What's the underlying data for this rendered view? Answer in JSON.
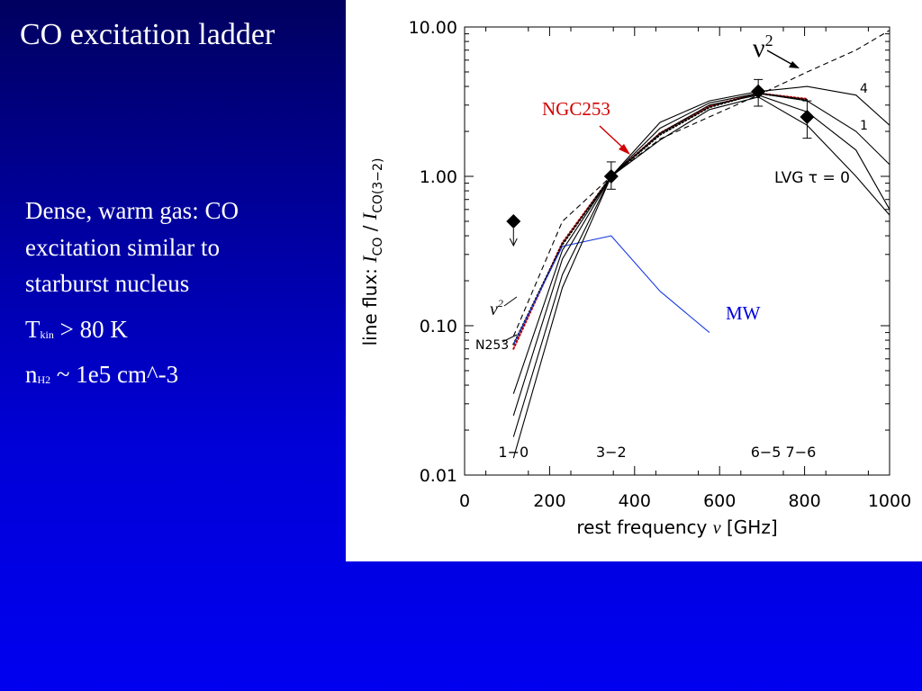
{
  "slide": {
    "title": "CO excitation ladder",
    "bullet_lines": [
      "Dense, warm gas: CO",
      "excitation similar to",
      "starburst nucleus"
    ],
    "tkin": {
      "symbol": "T",
      "sub": "kin",
      "rest": " > 80 K"
    },
    "nh2": {
      "symbol": "n",
      "sub": "H2",
      "rest": " ~ 1e5 cm^-3"
    }
  },
  "chart_data": {
    "type": "line",
    "x_axis": {
      "label_main": "rest frequency ",
      "label_symbol": "ν",
      "label_unit": " [GHz]",
      "range": [
        0,
        1000
      ],
      "ticks": [
        "0",
        "200",
        "400",
        "600",
        "800",
        "1000"
      ]
    },
    "y_axis": {
      "label_prefix": "line flux:  ",
      "label_ratio": "I",
      "label_sub_num": "CO",
      "label_sep": "  /  ",
      "label_sub_den": "CO(3−2)",
      "scale": "log",
      "range": [
        0.01,
        10
      ],
      "ticks": [
        "10.00",
        "1.00",
        "0.10",
        "0.01"
      ]
    },
    "transition_labels": [
      {
        "text": "1−0",
        "x": 115
      },
      {
        "text": "3−2",
        "x": 345
      },
      {
        "text": "6−5 7−6",
        "x": 750
      }
    ],
    "annotations": {
      "nu2_top": {
        "base": "ν",
        "sup": "2"
      },
      "nu2_left": {
        "base": "ν",
        "sup": "2"
      },
      "ngc253": "NGC253",
      "mw": "MW",
      "lvg": "LVG  τ = 0",
      "n253": "N253",
      "curve4": "4",
      "curve1": "1"
    },
    "series": [
      {
        "name": "",
        "style": "dashed",
        "color": "#000000",
        "points": [
          [
            115,
            0.085
          ],
          [
            230,
            0.5
          ],
          [
            345,
            1.0
          ],
          [
            460,
            1.78
          ],
          [
            576,
            2.5
          ],
          [
            691,
            3.5
          ],
          [
            806,
            5.0
          ],
          [
            921,
            7.0
          ],
          [
            1000,
            9.5
          ]
        ]
      },
      {
        "name": "NGC253",
        "style": "dotted",
        "color": "#c00000",
        "points": [
          [
            115,
            0.07
          ],
          [
            230,
            0.36
          ],
          [
            345,
            1.0
          ],
          [
            460,
            1.95
          ],
          [
            576,
            2.95
          ],
          [
            691,
            3.6
          ],
          [
            806,
            3.3
          ]
        ]
      },
      {
        "name": "N253",
        "style": "dotted",
        "color": "#000000",
        "points": [
          [
            115,
            0.075
          ],
          [
            230,
            0.35
          ],
          [
            345,
            1.0
          ],
          [
            460,
            1.9
          ],
          [
            576,
            2.9
          ],
          [
            691,
            3.6
          ],
          [
            806,
            3.25
          ]
        ]
      },
      {
        "name": "MW",
        "style": "solid",
        "color": "#1a3ce6",
        "points": [
          [
            115,
            0.075
          ],
          [
            230,
            0.34
          ],
          [
            345,
            0.4
          ],
          [
            460,
            0.17
          ],
          [
            576,
            0.09
          ]
        ]
      },
      {
        "name": "",
        "style": "solid",
        "color": "#000000",
        "points": [
          [
            115,
            0.035
          ],
          [
            230,
            0.32
          ],
          [
            345,
            1.0
          ],
          [
            460,
            2.3
          ],
          [
            576,
            3.2
          ],
          [
            691,
            3.7
          ],
          [
            806,
            4.0
          ],
          [
            921,
            3.5
          ],
          [
            1000,
            2.2
          ]
        ]
      },
      {
        "name": "",
        "style": "solid",
        "color": "#000000",
        "points": [
          [
            115,
            0.025
          ],
          [
            230,
            0.28
          ],
          [
            345,
            1.0
          ],
          [
            460,
            2.1
          ],
          [
            576,
            3.1
          ],
          [
            691,
            3.6
          ],
          [
            806,
            3.2
          ],
          [
            921,
            2.0
          ],
          [
            1000,
            1.2
          ]
        ]
      },
      {
        "name": "",
        "style": "solid",
        "color": "#000000",
        "points": [
          [
            115,
            0.018
          ],
          [
            230,
            0.22
          ],
          [
            345,
            1.0
          ],
          [
            460,
            1.95
          ],
          [
            576,
            3.0
          ],
          [
            691,
            3.5
          ],
          [
            806,
            2.7
          ],
          [
            921,
            1.5
          ],
          [
            1000,
            0.6
          ]
        ]
      },
      {
        "name": "",
        "style": "solid",
        "color": "#000000",
        "points": [
          [
            115,
            0.013
          ],
          [
            230,
            0.18
          ],
          [
            345,
            1.0
          ],
          [
            460,
            1.75
          ],
          [
            576,
            2.8
          ],
          [
            691,
            3.4
          ],
          [
            806,
            2.2
          ],
          [
            921,
            1.0
          ],
          [
            1000,
            0.55
          ]
        ]
      }
    ],
    "observations": [
      {
        "x": 115,
        "y": 0.5,
        "upper_limit": true
      },
      {
        "x": 345,
        "y": 1.0,
        "err_low": 0.82,
        "err_high": 1.25
      },
      {
        "x": 691,
        "y": 3.7,
        "err_low": 2.95,
        "err_high": 4.45
      },
      {
        "x": 806,
        "y": 2.5,
        "err_low": 1.8,
        "err_high": 3.2
      }
    ],
    "grid": false,
    "legend": "none"
  }
}
